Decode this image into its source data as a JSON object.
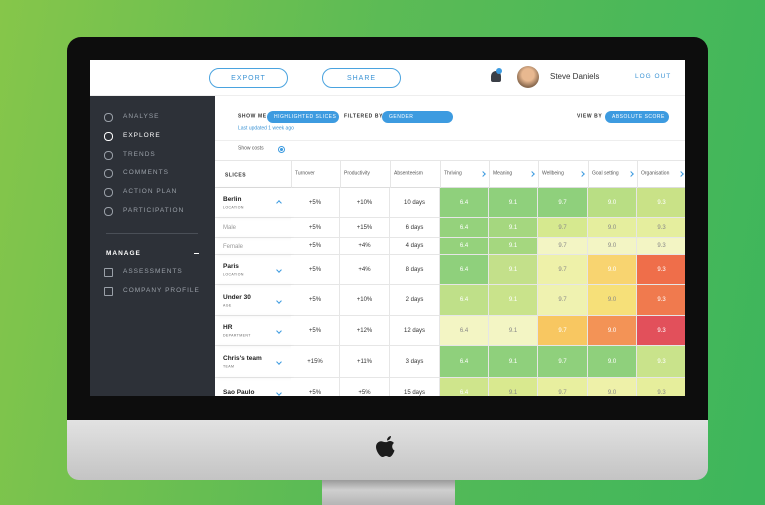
{
  "header": {
    "buttons": [
      "EXPORT",
      "SHARE"
    ],
    "user": "Steve Daniels",
    "logout": "LOG OUT"
  },
  "sidebar": {
    "items": [
      "ANALYSE",
      "EXPLORE",
      "TRENDS",
      "COMMENTS",
      "ACTION PLAN",
      "PARTICIPATION"
    ],
    "active": 1,
    "section": "MANAGE",
    "section_items": [
      "ASSESSMENTS",
      "COMPANY PROFILE"
    ]
  },
  "filters": {
    "show_me_label": "SHOW ME",
    "show_me": "HIGHLIGHTED SLICES",
    "filtered_by_label": "FILTERED BY",
    "filtered_by": "GENDER",
    "view_by_label": "VIEW BY",
    "view_by": "ABSOLUTE SCORE",
    "updated": "Last updated 1 week ago",
    "show_costs": "Show costs"
  },
  "table": {
    "slices_label": "SLICES",
    "columns": [
      "Turnover",
      "Productivity",
      "Absenteeism",
      "Thriving",
      "Meaning",
      "Wellbeing",
      "Goal setting",
      "Organisation"
    ],
    "rows": [
      {
        "name": "Berlin",
        "sub": "LOCATION",
        "expanded": true,
        "cells": [
          "+5%",
          "+10%",
          "10 days",
          "6.4",
          "9.1",
          "9.7",
          "9.0",
          "9.3"
        ],
        "colors": [
          "#8fd07c",
          "#8fd07c",
          "#8fd07c",
          "#b9de84",
          "#c9e287"
        ]
      },
      {
        "name": "Male",
        "child": true,
        "cells": [
          "+5%",
          "+15%",
          "6 days",
          "6.4",
          "9.1",
          "9.7",
          "9.0",
          "9.3"
        ],
        "colors": [
          "#95d27c",
          "#a5d77f",
          "#d6e98f",
          "#e5ee9e",
          "#e5ee9e"
        ]
      },
      {
        "name": "Female",
        "child": true,
        "cells": [
          "+5%",
          "+4%",
          "4 days",
          "6.4",
          "9.1",
          "9.7",
          "9.0",
          "9.3"
        ],
        "colors": [
          "#95d27c",
          "#a5d77f",
          "#f3f5c4",
          "#f3f5c4",
          "#f3f5c4"
        ]
      },
      {
        "name": "Paris",
        "sub": "LOCATION",
        "cells": [
          "+5%",
          "+4%",
          "8 days",
          "6.4",
          "9.1",
          "9.7",
          "9.0",
          "9.3"
        ],
        "colors": [
          "#8fd07c",
          "#c3e08a",
          "#eef1a9",
          "#f8d470",
          "#ef6e4a"
        ]
      },
      {
        "name": "Under 30",
        "sub": "AGE",
        "cells": [
          "+5%",
          "+10%",
          "2 days",
          "6.4",
          "9.1",
          "9.7",
          "9.0",
          "9.3"
        ],
        "colors": [
          "#bfe089",
          "#c9e38b",
          "#eff2b0",
          "#f6e079",
          "#f07a4e"
        ]
      },
      {
        "name": "HR",
        "sub": "DEPARTMENT",
        "cells": [
          "+5%",
          "+12%",
          "12 days",
          "6.4",
          "9.1",
          "9.7",
          "9.0",
          "9.3"
        ],
        "colors": [
          "#f3f5c4",
          "#f3f5c4",
          "#f8c761",
          "#f39356",
          "#e2505b"
        ]
      },
      {
        "name": "Chris's team",
        "sub": "TEAM",
        "cells": [
          "+15%",
          "+11%",
          "3 days",
          "6.4",
          "9.1",
          "9.7",
          "9.0",
          "9.3"
        ],
        "colors": [
          "#8fd07c",
          "#8fd07c",
          "#8fd07c",
          "#8fd07c",
          "#c9e38b"
        ]
      },
      {
        "name": "Sao Paulo",
        "cells": [
          "+5%",
          "+5%",
          "15 days",
          "6.4",
          "9.1",
          "9.7",
          "9.0",
          "9.3"
        ],
        "colors": [
          "#cfe58c",
          "#d9e98f",
          "#e8ef9f",
          "#eef1a9",
          "#e6ee9c"
        ]
      }
    ]
  }
}
